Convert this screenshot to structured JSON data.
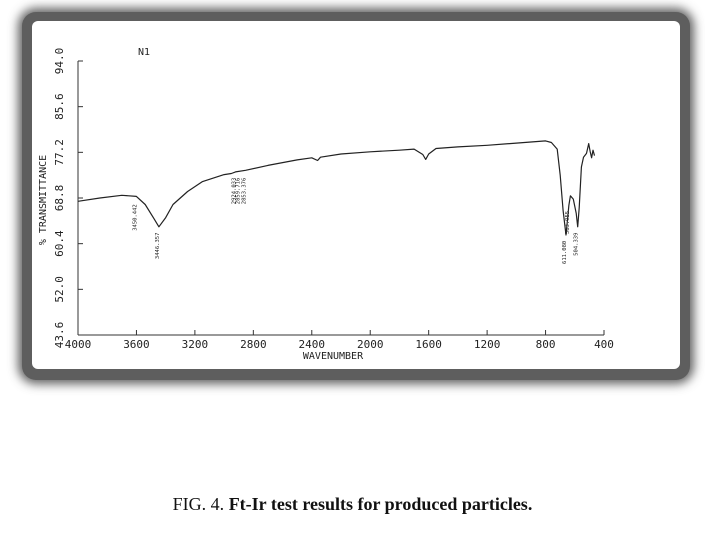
{
  "figure": {
    "caption_prefix": "FIG. 4.",
    "caption_title": "Ft-Ir test results for produced particles."
  },
  "chart_data": {
    "type": "line",
    "title": "N1",
    "xlabel": "WAVENUMBER",
    "ylabel": "% TRANSMITTANCE",
    "xlim": [
      4000,
      400
    ],
    "ylim": [
      43.6,
      94.0
    ],
    "x_ticks": [
      4000,
      3600,
      3200,
      2800,
      2400,
      2000,
      1600,
      1200,
      800,
      400
    ],
    "x_tick_labels": [
      "4000",
      "3600",
      "3200",
      "2800",
      "2400",
      "2000",
      "1600",
      "1200",
      "800",
      "400"
    ],
    "y_ticks": [
      43.6,
      52.0,
      60.4,
      68.8,
      77.2,
      85.6,
      94.0
    ],
    "y_tick_labels": [
      "43.6",
      "52.0",
      "60.4",
      "68.8",
      "77.2",
      "85.6",
      "94.0"
    ],
    "grid": false,
    "legend": "none",
    "series": [
      {
        "color": "#222222",
        "points": [
          [
            4000,
            68.2
          ],
          [
            3850,
            68.8
          ],
          [
            3700,
            69.3
          ],
          [
            3600,
            69.1
          ],
          [
            3540,
            67.6
          ],
          [
            3480,
            65.0
          ],
          [
            3446,
            63.5
          ],
          [
            3400,
            65.2
          ],
          [
            3350,
            67.6
          ],
          [
            3250,
            70.0
          ],
          [
            3150,
            71.8
          ],
          [
            3000,
            73.1
          ],
          [
            2950,
            73.3
          ],
          [
            2922,
            73.6
          ],
          [
            2853,
            73.9
          ],
          [
            2700,
            74.8
          ],
          [
            2500,
            75.8
          ],
          [
            2400,
            76.2
          ],
          [
            2360,
            75.7
          ],
          [
            2340,
            76.3
          ],
          [
            2200,
            76.9
          ],
          [
            2000,
            77.3
          ],
          [
            1800,
            77.6
          ],
          [
            1700,
            77.8
          ],
          [
            1640,
            76.8
          ],
          [
            1620,
            75.9
          ],
          [
            1600,
            76.9
          ],
          [
            1550,
            77.9
          ],
          [
            1400,
            78.2
          ],
          [
            1200,
            78.5
          ],
          [
            1000,
            78.9
          ],
          [
            900,
            79.1
          ],
          [
            800,
            79.3
          ],
          [
            760,
            79.0
          ],
          [
            720,
            77.8
          ],
          [
            700,
            73.0
          ],
          [
            680,
            66.5
          ],
          [
            660,
            62.0
          ],
          [
            640,
            67.5
          ],
          [
            630,
            69.2
          ],
          [
            610,
            68.6
          ],
          [
            590,
            66.0
          ],
          [
            580,
            63.5
          ],
          [
            570,
            67.0
          ],
          [
            555,
            74.5
          ],
          [
            540,
            76.3
          ],
          [
            520,
            77.0
          ],
          [
            505,
            78.8
          ],
          [
            495,
            77.4
          ],
          [
            485,
            76.2
          ],
          [
            475,
            77.6
          ],
          [
            465,
            76.6
          ]
        ]
      }
    ],
    "peak_labels": [
      {
        "x": 3600,
        "y": 68.0,
        "text": "3450.442"
      },
      {
        "x": 3446,
        "y": 62.8,
        "text": "3446.357"
      },
      {
        "x": 2922,
        "y": 72.9,
        "text": "2924.033"
      },
      {
        "x": 2895,
        "y": 72.9,
        "text": "2859.716"
      },
      {
        "x": 2853,
        "y": 72.9,
        "text": "2853.376"
      },
      {
        "x": 660,
        "y": 61.3,
        "text": "611.080"
      },
      {
        "x": 640,
        "y": 66.8,
        "text": "563.955"
      },
      {
        "x": 580,
        "y": 62.8,
        "text": "504.339"
      }
    ]
  }
}
